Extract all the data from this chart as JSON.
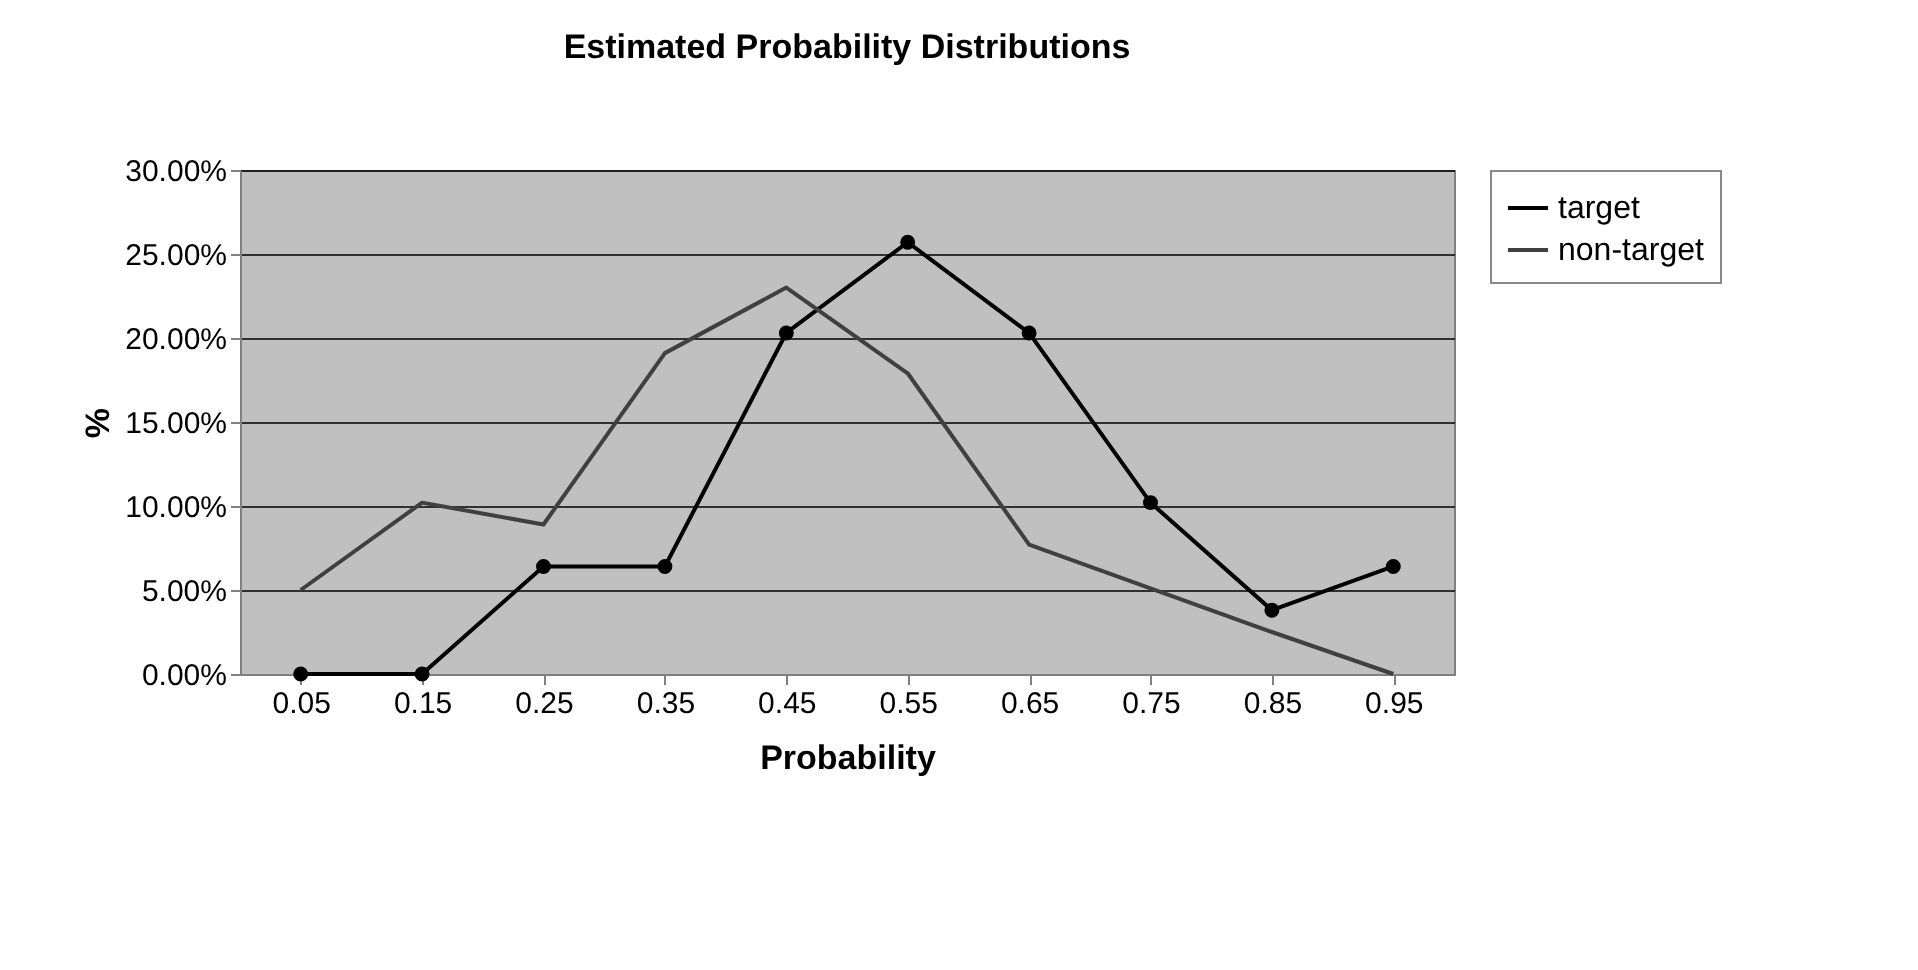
{
  "chart_data": {
    "type": "line",
    "title": "Estimated Probability Distributions",
    "xlabel": "Probability",
    "ylabel": "%",
    "categories": [
      "0.05",
      "0.15",
      "0.25",
      "0.35",
      "0.45",
      "0.55",
      "0.65",
      "0.75",
      "0.85",
      "0.95"
    ],
    "series": [
      {
        "name": "target",
        "color": "#000000",
        "marker": "circle",
        "values": [
          0,
          0,
          6.4,
          6.4,
          20.3,
          25.7,
          20.3,
          10.2,
          3.8,
          6.4
        ]
      },
      {
        "name": "non-target",
        "color": "#404040",
        "marker": "none",
        "values": [
          5.0,
          10.2,
          8.9,
          19.1,
          23.0,
          17.9,
          7.7,
          5.1,
          2.5,
          0
        ]
      }
    ],
    "ylim": [
      0,
      30
    ],
    "yticks": [
      {
        "value": 0,
        "label": "0.00%"
      },
      {
        "value": 5,
        "label": "5.00%"
      },
      {
        "value": 10,
        "label": "10.00%"
      },
      {
        "value": 15,
        "label": "15.00%"
      },
      {
        "value": 20,
        "label": "20.00%"
      },
      {
        "value": 25,
        "label": "25.00%"
      },
      {
        "value": 30,
        "label": "30.00%"
      }
    ],
    "grid": "y",
    "legend": "right",
    "line_style": "solid"
  }
}
